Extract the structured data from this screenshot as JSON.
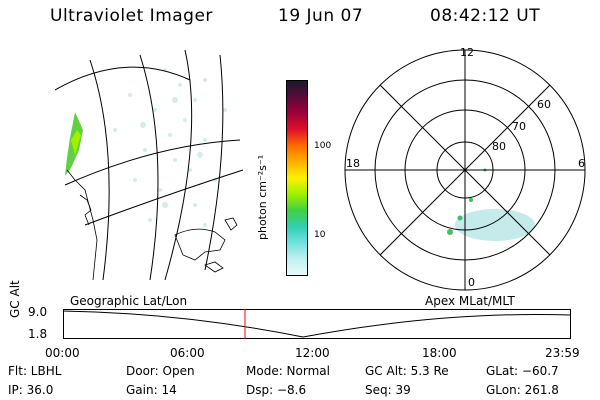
{
  "header": {
    "title": "Ultraviolet Imager",
    "date": "19 Jun 07",
    "time": "08:42:12 UT"
  },
  "colorbar": {
    "unit_label": "photon cm⁻²s⁻¹",
    "ticks": [
      "100",
      "10"
    ],
    "colors": [
      "#1a1a2e",
      "#5a0a3a",
      "#a0003a",
      "#e0102a",
      "#ff6a00",
      "#ffb000",
      "#fff000",
      "#a0f000",
      "#40d040",
      "#30d0b0",
      "#70e0e0",
      "#c0f0f0",
      "#e8fafa"
    ]
  },
  "polar": {
    "mlt_labels": {
      "top": "12",
      "right": "6",
      "bottom": "0",
      "left": "18"
    },
    "lat_labels": [
      "60",
      "70",
      "80"
    ]
  },
  "timeline": {
    "left_label": "Geographic Lat/Lon",
    "right_label": "Apex MLat/MLT",
    "y_axis_label": "GC Alt",
    "y_ticks": [
      "9.0",
      "1.8"
    ],
    "x_ticks": [
      "00:00",
      "06:00",
      "12:00",
      "18:00",
      "23:59"
    ]
  },
  "footer": {
    "row1": {
      "flt": "Flt: LBHL",
      "door": "Door: Open",
      "mode": "Mode: Normal",
      "gcalt": "GC Alt: 5.3 Re",
      "glat": "GLat: −60.7"
    },
    "row2": {
      "ip": "IP: 36.0",
      "gain": "Gain: 14",
      "dsp": "Dsp:   −8.6",
      "seq": "Seq: 39",
      "glon": "GLon: 261.8"
    }
  }
}
